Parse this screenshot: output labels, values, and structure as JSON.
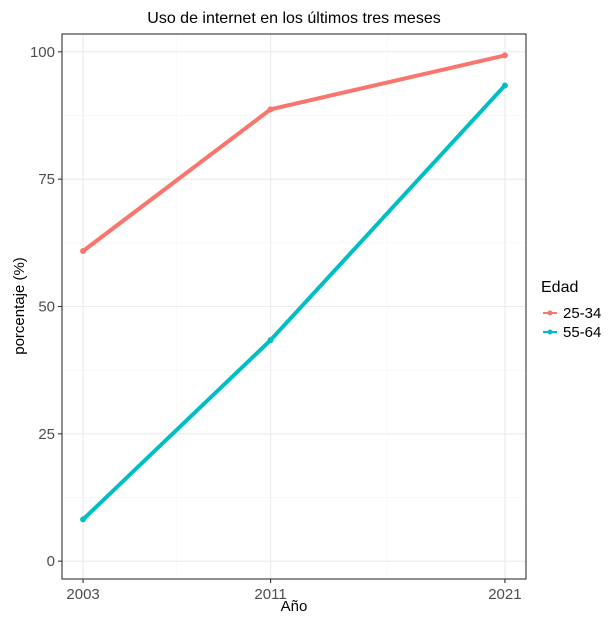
{
  "chart_data": {
    "type": "line",
    "title": "Uso de internet en los últimos tres meses",
    "xlabel": "Año",
    "ylabel": "porcentaje (%)",
    "x": [
      2003,
      2011,
      2021
    ],
    "xticks": [
      "2003",
      "2011",
      "2021"
    ],
    "yticks": [
      0,
      25,
      50,
      75,
      100
    ],
    "ylim": [
      -3.5,
      103.5
    ],
    "xlim": [
      2002.1,
      2021.9
    ],
    "grid": true,
    "legend": {
      "title": "Edad",
      "placement": "right"
    },
    "series": [
      {
        "name": "25-34",
        "color": "#F8766D",
        "values": [
          60.9,
          88.7,
          99.3
        ]
      },
      {
        "name": "55-64",
        "color": "#00BFC4",
        "values": [
          8.2,
          43.4,
          93.4
        ]
      }
    ]
  }
}
